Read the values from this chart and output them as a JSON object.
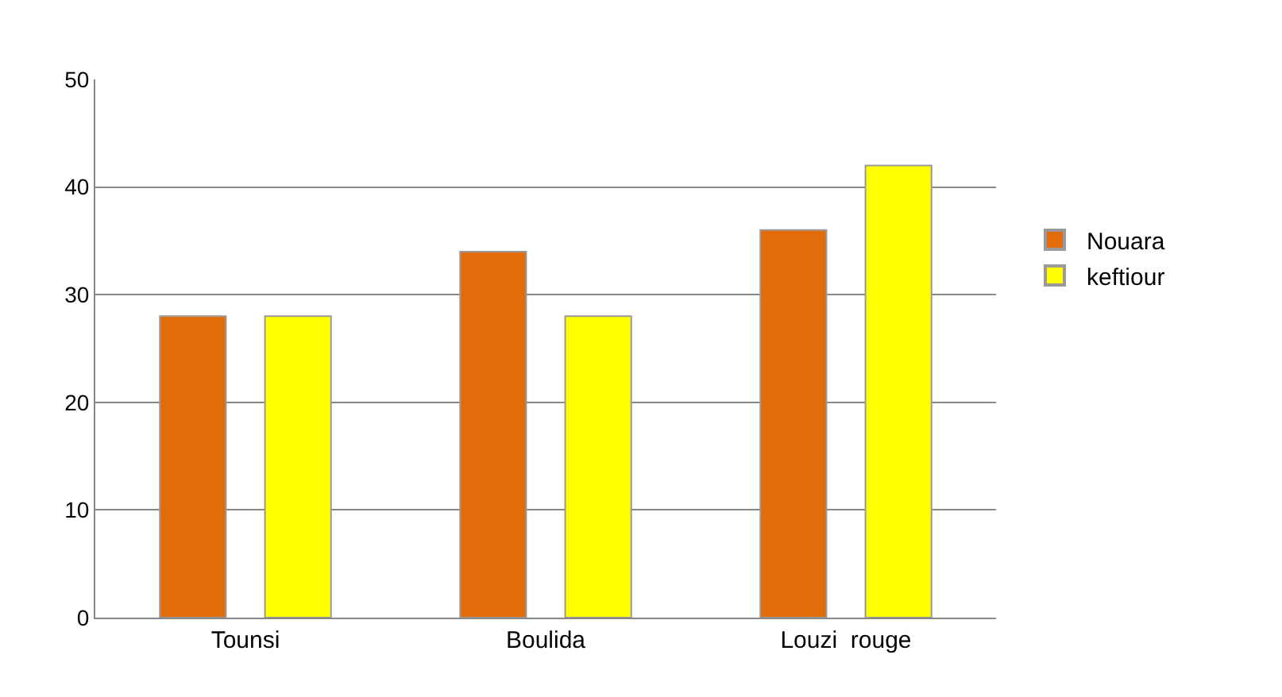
{
  "chart_data": {
    "type": "bar",
    "categories": [
      "Tounsi",
      "Boulida",
      "Louzi  rouge"
    ],
    "series": [
      {
        "name": "Nouara",
        "color": "#e36c0a",
        "values": [
          28,
          34,
          36
        ]
      },
      {
        "name": "keftiour",
        "color": "#ffff00",
        "values": [
          28,
          28,
          42
        ]
      }
    ],
    "ylim": [
      0,
      50
    ],
    "yticks": [
      0,
      10,
      20,
      30,
      40,
      50
    ],
    "grid": "y",
    "legend": "right"
  }
}
